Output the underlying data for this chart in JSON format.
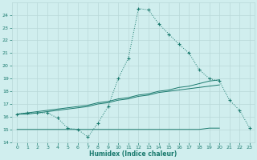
{
  "xlabel": "Humidex (Indice chaleur)",
  "x": [
    0,
    1,
    2,
    3,
    4,
    5,
    6,
    7,
    8,
    9,
    10,
    11,
    12,
    13,
    14,
    15,
    16,
    17,
    18,
    19,
    20,
    21,
    22,
    23
  ],
  "line1": [
    16.2,
    16.3,
    16.3,
    16.3,
    15.9,
    15.1,
    15.0,
    14.4,
    15.5,
    16.8,
    19.0,
    20.6,
    24.5,
    24.4,
    23.3,
    22.5,
    21.7,
    21.0,
    19.7,
    19.0,
    18.8,
    17.3,
    16.5,
    15.1
  ],
  "line2": [
    16.2,
    16.3,
    16.4,
    16.5,
    16.6,
    16.7,
    16.8,
    16.9,
    17.1,
    17.2,
    17.4,
    17.5,
    17.7,
    17.8,
    18.0,
    18.1,
    18.3,
    18.4,
    18.6,
    18.8,
    18.9,
    null,
    null,
    null
  ],
  "line3": [
    16.2,
    16.2,
    16.3,
    16.4,
    16.5,
    16.6,
    16.7,
    16.8,
    17.0,
    17.1,
    17.3,
    17.4,
    17.6,
    17.7,
    17.9,
    18.0,
    18.1,
    18.2,
    18.3,
    18.4,
    18.5,
    null,
    null,
    null
  ],
  "line4": [
    15.0,
    15.0,
    15.0,
    15.0,
    15.0,
    15.0,
    15.0,
    15.0,
    15.0,
    15.0,
    15.0,
    15.0,
    15.0,
    15.0,
    15.0,
    15.0,
    15.0,
    15.0,
    15.0,
    15.1,
    15.1,
    null,
    null,
    null
  ],
  "color": "#1a7a6e",
  "background_color": "#d0eeee",
  "grid_color": "#b8d8d8",
  "ylim": [
    14,
    25
  ],
  "xlim": [
    -0.5,
    23.5
  ],
  "yticks": [
    14,
    15,
    16,
    17,
    18,
    19,
    20,
    21,
    22,
    23,
    24
  ],
  "xticks": [
    0,
    1,
    2,
    3,
    4,
    5,
    6,
    7,
    8,
    9,
    10,
    11,
    12,
    13,
    14,
    15,
    16,
    17,
    18,
    19,
    20,
    21,
    22,
    23
  ]
}
